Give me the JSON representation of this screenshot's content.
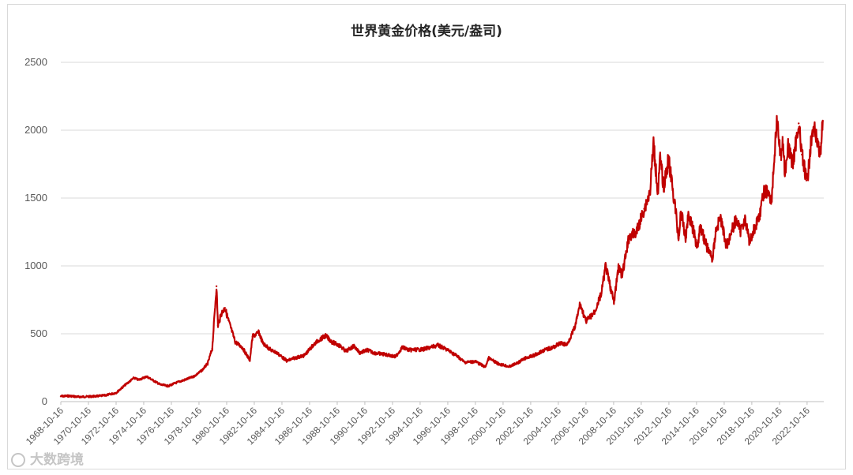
{
  "chart_data": {
    "type": "line",
    "title": "世界黄金价格(美元/盎司)",
    "xlabel": "",
    "ylabel": "",
    "ylim": [
      0,
      2500
    ],
    "yticks": [
      0,
      500,
      1000,
      1500,
      2000,
      2500
    ],
    "xlim": [
      "1968-10-16",
      "2023-12-31"
    ],
    "x_tick_labels": [
      "1968-10-16",
      "1970-10-16",
      "1972-10-16",
      "1974-10-16",
      "1976-10-16",
      "1978-10-16",
      "1980-10-16",
      "1982-10-16",
      "1984-10-16",
      "1986-10-16",
      "1988-10-16",
      "1990-10-16",
      "1992-10-16",
      "1994-10-16",
      "1996-10-16",
      "1998-10-16",
      "2000-10-16",
      "2002-10-16",
      "2004-10-16",
      "2006-10-16",
      "2008-10-16",
      "2010-10-16",
      "2012-10-16",
      "2014-10-16",
      "2016-10-16",
      "2018-10-16",
      "2020-10-16",
      "2022-10-16"
    ],
    "grid": true,
    "legend": "none",
    "line_color": "#c00000",
    "series": [
      {
        "x": [
          "1968-10-16",
          "1969-06-01",
          "1970-01-01",
          "1970-10-16",
          "1971-06-01",
          "1972-01-01",
          "1972-10-16",
          "1973-06-01",
          "1974-02-01",
          "1974-06-01",
          "1975-01-01",
          "1975-06-01",
          "1976-01-01",
          "1976-08-01",
          "1977-03-01",
          "1977-10-01",
          "1978-06-01",
          "1979-01-01",
          "1979-06-01",
          "1979-10-01",
          "1980-01-21",
          "1980-03-01",
          "1980-06-01",
          "1980-09-01",
          "1980-12-01",
          "1981-06-01",
          "1981-12-01",
          "1982-06-21",
          "1982-09-01",
          "1983-02-15",
          "1983-06-01",
          "1984-01-01",
          "1984-06-01",
          "1985-02-25",
          "1985-09-01",
          "1986-06-01",
          "1987-01-01",
          "1987-06-01",
          "1987-12-14",
          "1988-06-01",
          "1989-01-01",
          "1989-06-01",
          "1990-01-01",
          "1990-06-01",
          "1991-01-01",
          "1991-06-01",
          "1992-06-01",
          "1993-01-01",
          "1993-07-01",
          "1994-01-01",
          "1995-01-01",
          "1996-02-01",
          "1996-10-16",
          "1997-06-01",
          "1998-01-01",
          "1998-10-16",
          "1999-07-01",
          "1999-10-05",
          "2000-06-01",
          "2001-04-01",
          "2001-10-16",
          "2002-06-01",
          "2003-01-01",
          "2003-10-16",
          "2004-06-01",
          "2004-12-01",
          "2005-06-01",
          "2006-01-01",
          "2006-05-12",
          "2006-10-16",
          "2007-06-01",
          "2007-12-01",
          "2008-03-17",
          "2008-10-24",
          "2009-02-20",
          "2009-06-01",
          "2009-12-02",
          "2010-06-01",
          "2011-01-01",
          "2011-06-01",
          "2011-09-05",
          "2011-12-29",
          "2012-02-28",
          "2012-06-01",
          "2012-10-05",
          "2013-04-15",
          "2013-06-28",
          "2013-09-01",
          "2013-12-31",
          "2014-03-14",
          "2014-06-01",
          "2014-11-05",
          "2015-01-22",
          "2015-07-01",
          "2015-12-17",
          "2016-03-01",
          "2016-07-06",
          "2016-12-15",
          "2017-06-01",
          "2017-09-08",
          "2017-12-12",
          "2018-04-11",
          "2018-08-16",
          "2019-01-01",
          "2019-06-01",
          "2019-09-04",
          "2020-01-01",
          "2020-03-19",
          "2020-08-06",
          "2020-11-30",
          "2021-01-06",
          "2021-03-08",
          "2021-06-01",
          "2021-09-30",
          "2022-03-08",
          "2022-06-01",
          "2022-09-28",
          "2022-11-03",
          "2023-02-01",
          "2023-05-04",
          "2023-10-05",
          "2023-12-04"
        ],
        "values": [
          39,
          42,
          35,
          37,
          40,
          46,
          65,
          120,
          175,
          160,
          185,
          160,
          125,
          115,
          140,
          160,
          185,
          230,
          280,
          390,
          850,
          560,
          650,
          690,
          600,
          440,
          400,
          305,
          480,
          510,
          430,
          380,
          360,
          300,
          320,
          340,
          410,
          450,
          485,
          440,
          410,
          370,
          410,
          360,
          380,
          360,
          345,
          330,
          400,
          380,
          385,
          415,
          380,
          340,
          290,
          295,
          255,
          320,
          280,
          258,
          283,
          320,
          340,
          380,
          400,
          430,
          420,
          550,
          720,
          590,
          660,
          800,
          1000,
          730,
          990,
          930,
          1220,
          1240,
          1420,
          1540,
          1900,
          1540,
          1790,
          1580,
          1790,
          1400,
          1200,
          1400,
          1200,
          1380,
          1320,
          1140,
          1300,
          1150,
          1050,
          1250,
          1360,
          1150,
          1280,
          1350,
          1250,
          1350,
          1180,
          1280,
          1400,
          1550,
          1550,
          1480,
          2065,
          1780,
          1950,
          1680,
          1880,
          1750,
          2050,
          1820,
          1630,
          1640,
          1950,
          1990,
          1830,
          2070
        ]
      }
    ]
  },
  "watermark": {
    "text": "大数跨境",
    "icon": "logo-icon"
  }
}
